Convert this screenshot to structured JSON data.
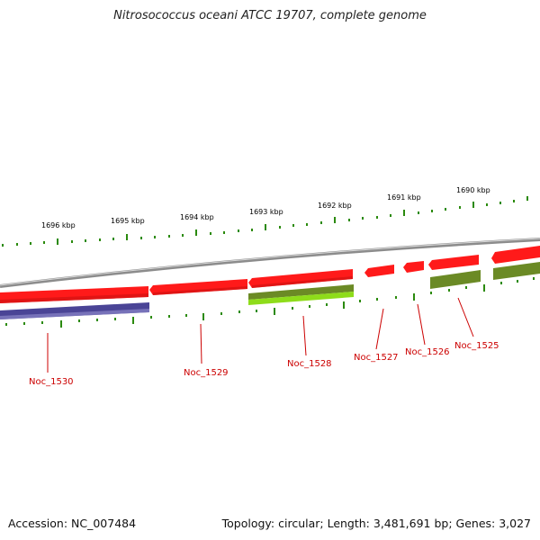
{
  "title": "Nitrosococcus oceani ATCC 19707, complete genome",
  "footer": {
    "accession": "Accession: NC_007484",
    "summary": "Topology: circular; Length: 3,481,691 bp; Genes: 3,027"
  },
  "colors": {
    "forward_gene": "#ff1a1a",
    "reverse_gene_blue": "#4a4496",
    "reverse_gene_olive": "#6b8a25",
    "reverse_gene_lime": "#8edc1a",
    "label": "#cc0000",
    "backbone": "#8c8c8c",
    "tick": "#2b8a0e"
  },
  "scale_labels": [
    "1696 kbp",
    "1695 kbp",
    "1694 kbp",
    "1693 kbp",
    "1692 kbp",
    "1691 kbp",
    "1690 kbp"
  ],
  "gene_labels": [
    "Noc_1530",
    "Noc_1529",
    "Noc_1528",
    "Noc_1527",
    "Noc_1526",
    "Noc_1525"
  ]
}
